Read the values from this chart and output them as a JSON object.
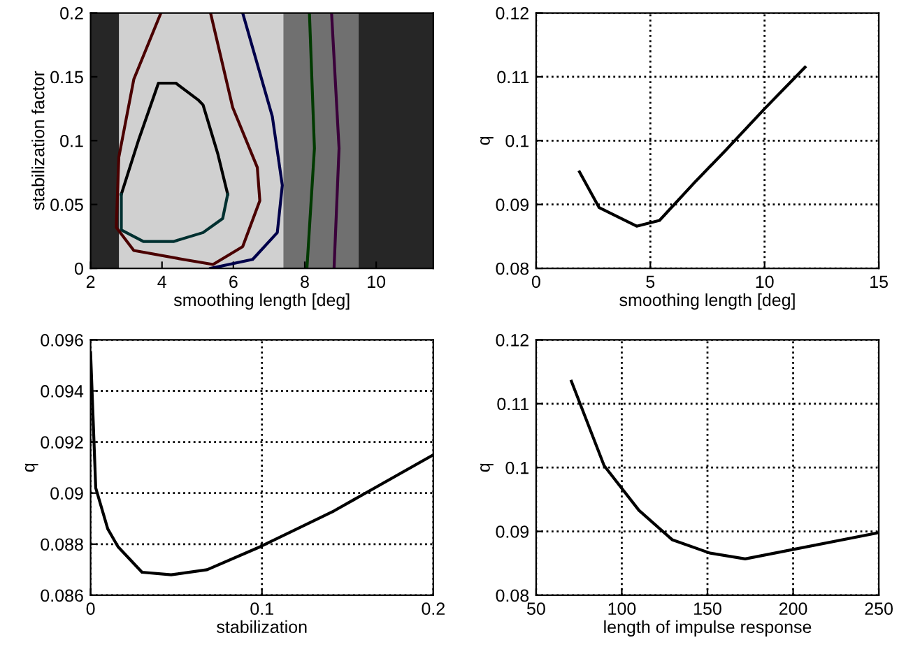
{
  "chart_data": [
    {
      "type": "line",
      "xlabel": "smoothing length [deg]",
      "ylabel": "stabilization factor",
      "xlim": [
        2,
        11.6
      ],
      "ylim": [
        0,
        0.2
      ],
      "xticks": [
        2,
        4,
        6,
        8,
        10
      ],
      "yticks": [
        0,
        0.05,
        0.1,
        0.15,
        0.2
      ],
      "line_style": "solid",
      "bands": [
        {
          "axis": "x",
          "from": 2,
          "to": 2.8,
          "color": "#262626"
        },
        {
          "axis": "x",
          "from": 2.8,
          "to": 7.4,
          "color": "#d0d0d0"
        },
        {
          "axis": "x",
          "from": 7.4,
          "to": 9.5,
          "color": "#707070"
        },
        {
          "axis": "x",
          "from": 9.5,
          "to": 11.6,
          "color": "#262626"
        }
      ],
      "series": [
        {
          "color": "#000000",
          "x": [
            2.86,
            3.35,
            3.9,
            4.39,
            5.01,
            5.15,
            5.56,
            5.84
          ],
          "values": [
            0.058,
            0.101,
            0.145,
            0.145,
            0.132,
            0.128,
            0.09,
            0.058
          ]
        },
        {
          "color": "#003030",
          "x": [
            2.86,
            2.86,
            3.48,
            4.32,
            5.15,
            5.7,
            5.84
          ],
          "values": [
            0.058,
            0.03,
            0.021,
            0.021,
            0.028,
            0.039,
            0.058
          ]
        },
        {
          "color": "#4a0000",
          "x": [
            3.97,
            3.21,
            2.79,
            2.72,
            3.21,
            4.59,
            5.43,
            6.26,
            6.74,
            6.67,
            5.98,
            5.36
          ],
          "values": [
            0.2,
            0.148,
            0.087,
            0.032,
            0.014,
            0.007,
            0.003,
            0.017,
            0.053,
            0.079,
            0.126,
            0.2
          ]
        },
        {
          "color": "#00004a",
          "x": [
            5.36,
            6.54,
            7.23,
            7.37,
            7.09,
            6.26
          ],
          "values": [
            0,
            0.007,
            0.028,
            0.065,
            0.119,
            0.2
          ]
        },
        {
          "color": "#003a00",
          "x": [
            8.06,
            8.27,
            8.13
          ],
          "values": [
            0,
            0.094,
            0.2
          ]
        },
        {
          "color": "#3a003a",
          "x": [
            8.82,
            8.96,
            8.75
          ],
          "values": [
            0,
            0.094,
            0.2
          ]
        }
      ]
    },
    {
      "type": "line",
      "xlabel": "smoothing length [deg]",
      "ylabel": "q",
      "xlim": [
        0,
        15
      ],
      "ylim": [
        0.08,
        0.12
      ],
      "xticks": [
        0,
        5,
        10,
        15
      ],
      "yticks": [
        0.08,
        0.09,
        0.1,
        0.11,
        0.12
      ],
      "grid": true,
      "line_style": "solid",
      "series": [
        {
          "color": "#000000",
          "x": [
            1.9,
            2.76,
            4.4,
            5.4,
            6.95,
            8.3,
            10.0,
            11.77
          ],
          "values": [
            0.0951,
            0.0895,
            0.0866,
            0.0875,
            0.0935,
            0.0985,
            0.105,
            0.1115
          ]
        }
      ]
    },
    {
      "type": "line",
      "xlabel": "stabilization",
      "ylabel": "q",
      "xlim": [
        0,
        0.2
      ],
      "ylim": [
        0.086,
        0.096
      ],
      "xticks": [
        0,
        0.1,
        0.2
      ],
      "yticks": [
        0.086,
        0.088,
        0.09,
        0.092,
        0.094,
        0.096
      ],
      "grid": true,
      "line_style": "solid",
      "series": [
        {
          "color": "#000000",
          "x": [
            0,
            0.003,
            0.01,
            0.016,
            0.03,
            0.047,
            0.068,
            0.099,
            0.142,
            0.2
          ],
          "values": [
            0.0955,
            0.0902,
            0.0886,
            0.0879,
            0.0869,
            0.0868,
            0.087,
            0.0879,
            0.0893,
            0.0915
          ]
        }
      ]
    },
    {
      "type": "line",
      "xlabel": "length of impulse response",
      "ylabel": "q",
      "xlim": [
        50,
        250
      ],
      "ylim": [
        0.08,
        0.12
      ],
      "xticks": [
        50,
        100,
        150,
        200,
        250
      ],
      "yticks": [
        0.08,
        0.09,
        0.1,
        0.11,
        0.12
      ],
      "grid": true,
      "line_style": "solid",
      "series": [
        {
          "color": "#000000",
          "x": [
            70.6,
            89.7,
            110,
            129.4,
            151.5,
            172,
            250
          ],
          "values": [
            0.1135,
            0.1003,
            0.0933,
            0.0887,
            0.0866,
            0.0857,
            0.0898
          ]
        }
      ]
    }
  ]
}
